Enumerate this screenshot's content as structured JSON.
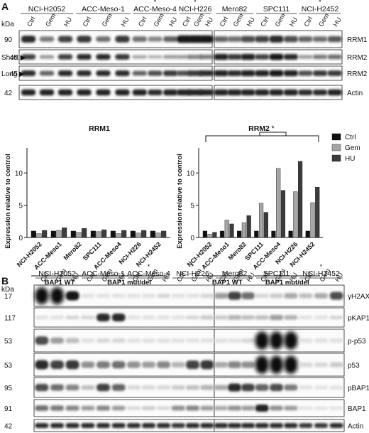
{
  "panelA": {
    "label": "A",
    "kda": "kDa",
    "cell_lines_left": [
      "NCI-H2052",
      "ACC-Meso-1",
      "ACC-Meso-4",
      "NCI-H226"
    ],
    "cell_lines_right": [
      "Mero82",
      "SPC111",
      "NCI-H2452"
    ],
    "starred": [
      "ACC-Meso-4",
      "NCI-H226",
      "NCI-H2452"
    ],
    "star": "*",
    "lane_labels": [
      "Ctrl",
      "Gem",
      "HU"
    ],
    "rows": [
      {
        "mw": "90",
        "prefix": "",
        "protein": "RRM1"
      },
      {
        "mw": "45",
        "prefix": "Short ▶",
        "protein": "RRM2"
      },
      {
        "mw": "45",
        "prefix": "Long ▶",
        "protein": "RRM2"
      },
      {
        "mw": "42",
        "prefix": "",
        "protein": "Actin"
      }
    ]
  },
  "chart_data": [
    {
      "type": "bar",
      "title": "RRM1",
      "ylabel": "Expression relative to control",
      "ylim": [
        0,
        13
      ],
      "yticks": [
        0,
        5,
        10
      ],
      "categories": [
        "NCI-H2052",
        "ACC-Meso1",
        "Mero82",
        "SPC111",
        "ACC-Meso4",
        "NCI-H226",
        "NCI-H2452"
      ],
      "series": [
        {
          "name": "Ctrl",
          "values": [
            1,
            1,
            1,
            1,
            1,
            1,
            1
          ]
        },
        {
          "name": "Gem",
          "values": [
            0.6,
            1.1,
            0.8,
            0.9,
            0.6,
            0.7,
            0.7
          ]
        },
        {
          "name": "HU",
          "values": [
            1.1,
            1.5,
            1.4,
            1.2,
            1.1,
            1.1,
            1.0
          ]
        }
      ],
      "groups": [
        {
          "label": "BAP1 WT",
          "count": 3
        },
        {
          "label": "BAP1 mut/del",
          "count": 4
        }
      ]
    },
    {
      "type": "bar",
      "title": "RRM2",
      "ylabel": "Expression relative to control",
      "ylim": [
        0,
        13
      ],
      "yticks": [
        0,
        5,
        10
      ],
      "categories": [
        "NCI-H2052",
        "ACC-Meso1",
        "Mero82",
        "SPC111",
        "ACC-Meso4",
        "NCI-H226",
        "NCI-H2452"
      ],
      "series": [
        {
          "name": "Ctrl",
          "values": [
            1,
            1,
            1,
            1,
            1,
            1,
            1
          ]
        },
        {
          "name": "Gem",
          "values": [
            0.5,
            2.7,
            2.3,
            5.3,
            10.7,
            7.1,
            5.4
          ]
        },
        {
          "name": "HU",
          "values": [
            0.8,
            2.1,
            3.4,
            3.9,
            7.3,
            11.8,
            7.8
          ]
        }
      ],
      "groups": [
        {
          "label": "BAP1 WT",
          "count": 3
        },
        {
          "label": "BAP1 mut/del",
          "count": 4
        }
      ],
      "significance": "*",
      "legend": [
        "Ctrl",
        "Gem",
        "HU"
      ],
      "legend_position": "right"
    }
  ],
  "colors": {
    "Ctrl": "#111111",
    "Gem": "#a6a6a6",
    "HU": "#3c3c3c"
  },
  "panelB": {
    "label": "B",
    "kda": "kDa",
    "cell_lines_left": [
      "NCI-H2052",
      "ACC-Meso-1",
      "ACC-Meso-4",
      "NCI-H226"
    ],
    "cell_lines_right": [
      "Mero82",
      "SPC111",
      "NCI-H2452"
    ],
    "starred": [
      "ACC-Meso-4",
      "NCI-H226",
      "NCI-H2452"
    ],
    "star": "*",
    "lane_labels": [
      "Ctrl",
      "Gem",
      "HU"
    ],
    "rows": [
      {
        "mw": "17",
        "protein": "γH2AX"
      },
      {
        "mw": "117",
        "protein": "pKAP1"
      },
      {
        "mw": "53",
        "protein": "p-p53"
      },
      {
        "mw": "53",
        "protein": "p53"
      },
      {
        "mw": "95",
        "protein": "pBAP1"
      },
      {
        "mw": "91",
        "protein": "BAP1"
      },
      {
        "mw": "42",
        "protein": "Actin"
      }
    ]
  }
}
